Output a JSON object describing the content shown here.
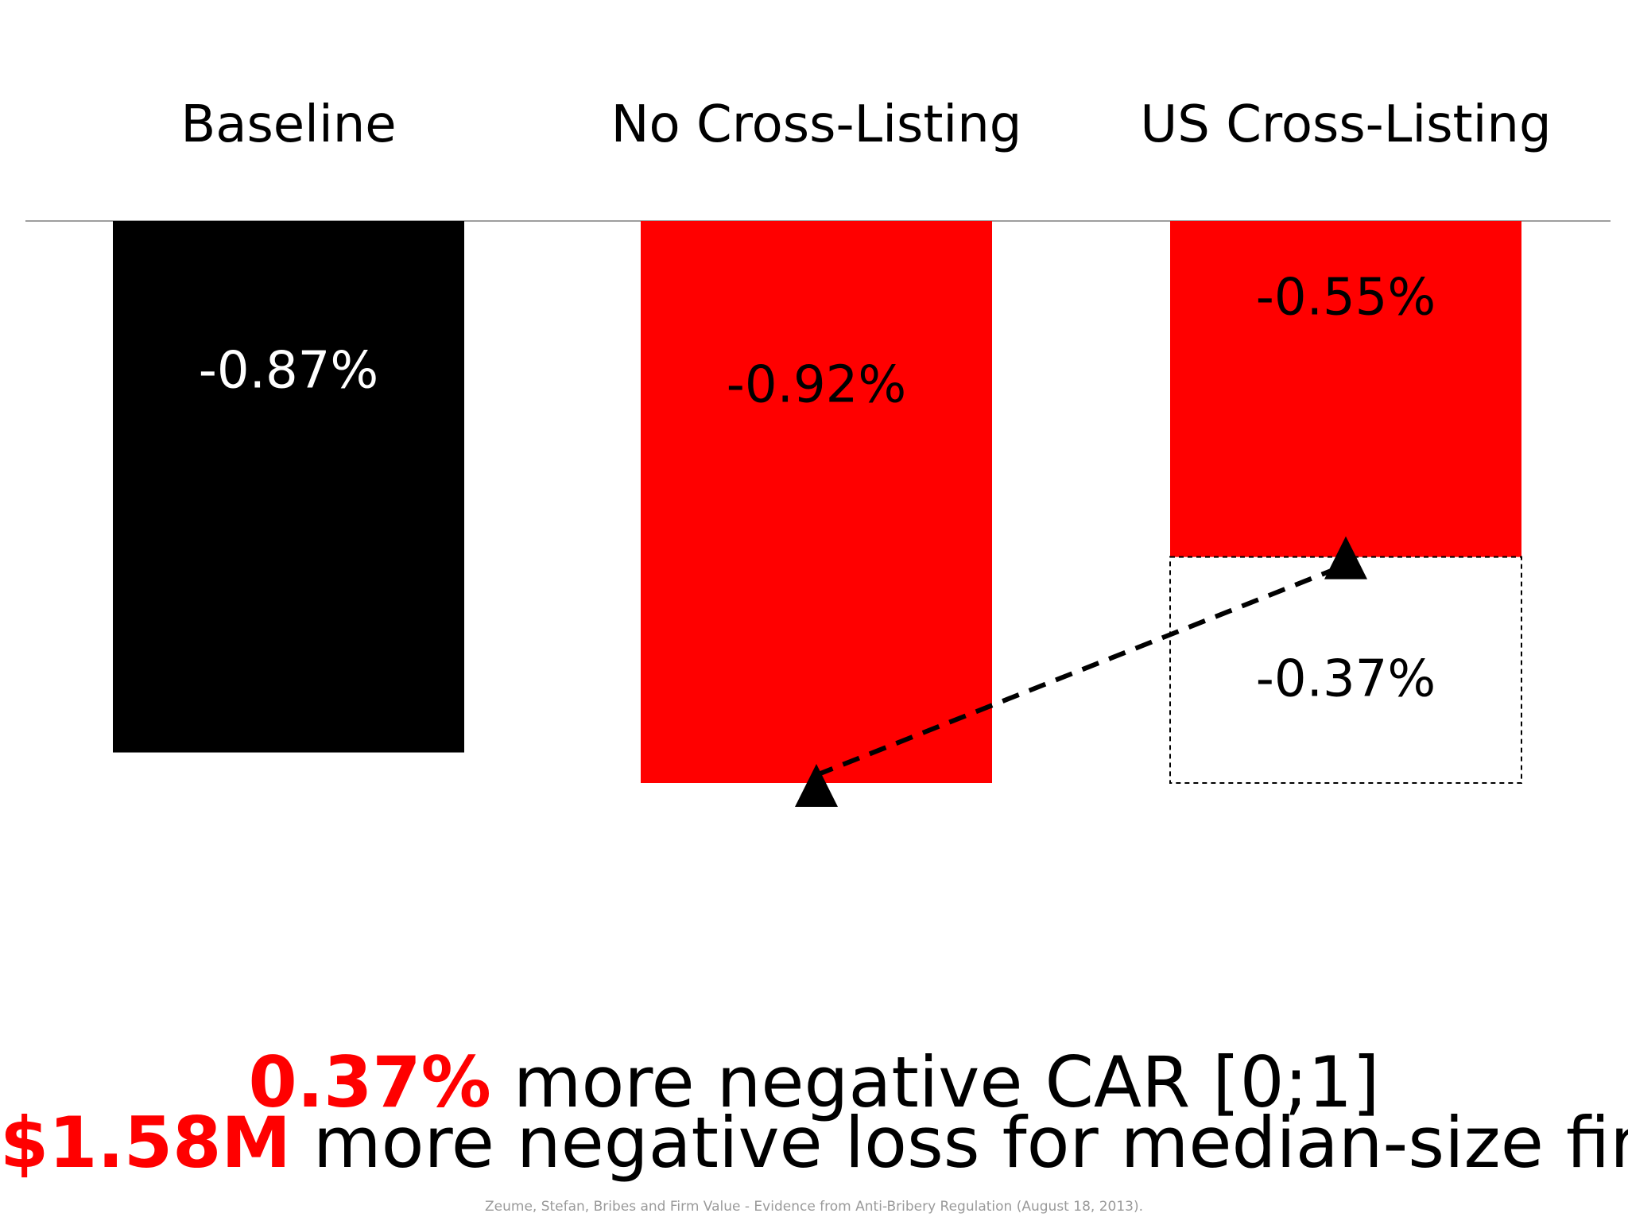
{
  "chart_data": {
    "type": "bar",
    "categories": [
      "Baseline",
      "No Cross-Listing",
      "US Cross-Listing"
    ],
    "values": [
      -0.87,
      -0.92,
      -0.55
    ],
    "value_labels": [
      "-0.87%",
      "-0.92%",
      "-0.55%"
    ],
    "difference": {
      "category": "US Cross-Listing",
      "value": -0.37,
      "label": "-0.37%"
    },
    "ylim": [
      -0.92,
      0
    ],
    "grid": false,
    "legend": "none",
    "title": "",
    "xlabel": "",
    "ylabel": ""
  },
  "colors": {
    "baseline": "#000000",
    "highlight": "#ff0000",
    "text_light": "#ffffff",
    "text_dark": "#000000",
    "footnote": "#9a9a9a",
    "axis": "#9e9e9e"
  },
  "headline": {
    "line1_highlight": "0.37%",
    "line1_rest": " more negative CAR [0;1]",
    "line2_highlight": "$1.58M",
    "line2_rest": " more negative loss for median-size firm"
  },
  "footnote": "Zeume, Stefan, Bribes and Firm Value - Evidence from Anti-Bribery Regulation (August 18, 2013).",
  "icons": {
    "markers": "triangle-up-icon",
    "connector": "dashed-arrow-line"
  }
}
